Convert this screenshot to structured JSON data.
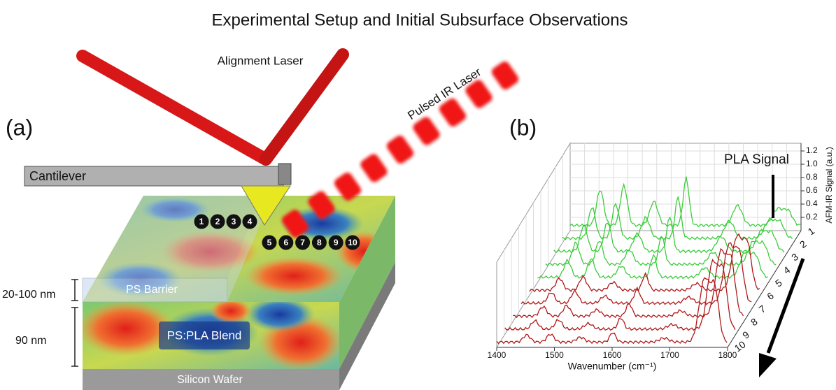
{
  "title": "Experimental Setup and Initial Subsurface Observations",
  "panel_a": {
    "label": "(a)",
    "alignment_laser": "Alignment Laser",
    "pulsed_ir_laser": "Pulsed IR Laser",
    "cantilever": "Cantilever",
    "ps_barrier": "PS Barrier",
    "blend": "PS:PLA Blend",
    "wafer": "Silicon Wafer",
    "barrier_thickness": "20-100 nm",
    "blend_thickness": "90 nm",
    "points": [
      "1",
      "2",
      "3",
      "4",
      "5",
      "6",
      "7",
      "8",
      "9",
      "10"
    ]
  },
  "panel_b": {
    "label": "(b)",
    "annotation": "PLA Signal",
    "x_axis_title": "Wavenumber (cm⁻¹)",
    "y_axis_title": "AFM-IR Signal (a.u.)",
    "x_ticks": [
      "1400",
      "1500",
      "1600",
      "1700",
      "1800"
    ],
    "y_ticks": [
      "0.2",
      "0.4",
      "0.6",
      "0.8",
      "1.0",
      "1.2"
    ],
    "depth_ticks": [
      "1",
      "2",
      "3",
      "4",
      "5",
      "6",
      "7",
      "8",
      "9",
      "10"
    ]
  }
}
